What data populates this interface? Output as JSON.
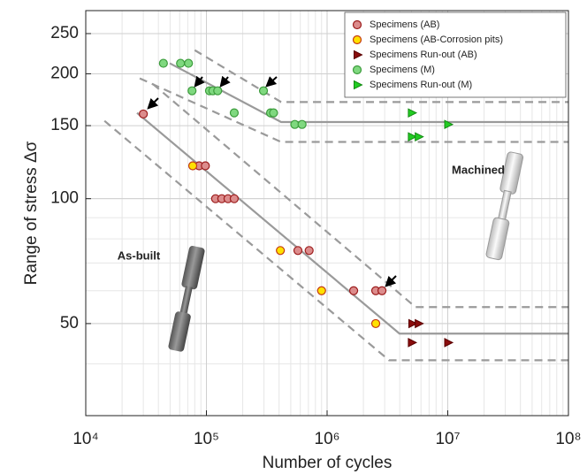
{
  "chart_data": {
    "type": "scatter",
    "xlabel": "Number of cycles",
    "ylabel": "Range of stress Δσ",
    "xscale": "log",
    "yscale": "log",
    "xlim": [
      10000,
      100000000
    ],
    "ylim": [
      30,
      284
    ],
    "xticks": [
      {
        "value": 10000,
        "label": "10⁴"
      },
      {
        "value": 100000,
        "label": "10⁵"
      },
      {
        "value": 1000000,
        "label": "10⁶"
      },
      {
        "value": 10000000,
        "label": "10⁷"
      },
      {
        "value": 100000000,
        "label": "10⁸"
      }
    ],
    "yticks": [
      50,
      100,
      150,
      200,
      250
    ],
    "grid": true,
    "legend": "upper right",
    "series": [
      {
        "name": "Specimens (AB)",
        "marker": "circle",
        "color": "#dc8c8c",
        "edge": "#9c1c1c",
        "x": [
          30000,
          87000,
          98000,
          119000,
          134000,
          151000,
          170000,
          573000,
          710000,
          1660000,
          2530000,
          2850000
        ],
        "values": [
          160,
          120,
          120,
          100,
          100,
          100,
          100,
          75,
          75,
          60,
          60,
          60
        ]
      },
      {
        "name": "Specimens (AB-Corrosion pits)",
        "marker": "circle",
        "color": "#ffe100",
        "edge": "#c43a10",
        "x": [
          77000,
          410000,
          900000,
          2530000
        ],
        "values": [
          120,
          75,
          60,
          50
        ]
      },
      {
        "name": "Specimens Run-out (AB)",
        "marker": "triangle",
        "color": "#8a0d0d",
        "edge": "#5a0000",
        "x": [
          5050000,
          5700000,
          5000000,
          10000000
        ],
        "values": [
          50,
          50,
          45,
          45
        ]
      },
      {
        "name": "Specimens (M)",
        "marker": "circle",
        "color": "#7fd87f",
        "edge": "#3c9c3c",
        "x": [
          44000,
          61000,
          71000,
          76000,
          106000,
          113000,
          124000,
          297000,
          170000,
          340000,
          360000,
          540000,
          620000
        ],
        "values": [
          212,
          212,
          212,
          182,
          182,
          182,
          182,
          182,
          161,
          161,
          161,
          151,
          151
        ]
      },
      {
        "name": "Specimens Run-out (M)",
        "marker": "triangle",
        "color": "#22cc22",
        "edge": "#128a12",
        "x": [
          5000000,
          5000000,
          5700000,
          10000000
        ],
        "values": [
          161,
          141,
          141,
          151
        ]
      }
    ],
    "fit_lines": [
      {
        "style": "solid",
        "x": [
          26600,
          3980000,
          100000000
        ],
        "values": [
          161,
          47.3,
          47.3
        ]
      },
      {
        "style": "dashed",
        "x": [
          36000,
          5400000,
          100000000
        ],
        "values": [
          189,
          54.8,
          54.8
        ]
      },
      {
        "style": "dashed",
        "x": [
          14300,
          3260000,
          100000000
        ],
        "values": [
          154,
          40.8,
          40.8
        ]
      },
      {
        "style": "solid",
        "x": [
          49700,
          416000,
          100000000
        ],
        "values": [
          212,
          153,
          153
        ]
      },
      {
        "style": "dashed",
        "x": [
          80000,
          416000,
          100000000
        ],
        "values": [
          228,
          171,
          171
        ]
      },
      {
        "style": "dashed",
        "x": [
          28000,
          416000,
          100000000
        ],
        "values": [
          195,
          137,
          137
        ]
      }
    ],
    "fit_line_color": "#9a9a9a",
    "annotations": [
      "Machined",
      "As-built"
    ]
  }
}
